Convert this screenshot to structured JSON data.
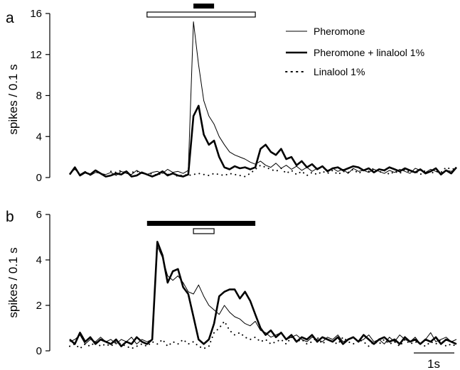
{
  "chart_data": [
    {
      "panel_label": "a",
      "type": "line",
      "ylabel": "spikes / 0.1 s",
      "ylim": [
        0,
        16
      ],
      "yticks": [
        0,
        4,
        8,
        12,
        16
      ],
      "xlim": [
        0,
        7.5
      ],
      "grid": false,
      "legend_position": "top-right",
      "stimulus_bars": [
        {
          "style": "open",
          "start": 1.5,
          "end": 3.6
        },
        {
          "style": "filled",
          "start": 2.4,
          "end": 2.8
        }
      ],
      "series": [
        {
          "name": "Pheromone",
          "style": "thin",
          "x": [
            0.0,
            0.1,
            0.2,
            0.3,
            0.4,
            0.5,
            0.6,
            0.7,
            0.8,
            0.9,
            1.0,
            1.1,
            1.2,
            1.3,
            1.4,
            1.5,
            1.6,
            1.7,
            1.8,
            1.9,
            2.0,
            2.1,
            2.2,
            2.3,
            2.4,
            2.5,
            2.6,
            2.7,
            2.8,
            2.9,
            3.0,
            3.1,
            3.2,
            3.3,
            3.4,
            3.5,
            3.6,
            3.7,
            3.8,
            3.9,
            4.0,
            4.1,
            4.2,
            4.3,
            4.4,
            4.5,
            4.6,
            4.7,
            4.8,
            4.9,
            5.0,
            5.1,
            5.2,
            5.3,
            5.4,
            5.5,
            5.6,
            5.7,
            5.8,
            5.9,
            6.0,
            6.1,
            6.2,
            6.3,
            6.4,
            6.5,
            6.6,
            6.7,
            6.8,
            6.9,
            7.0,
            7.1,
            7.2,
            7.3,
            7.4,
            7.5
          ],
          "y": [
            0.4,
            0.8,
            0.3,
            0.6,
            0.2,
            0.5,
            0.4,
            0.3,
            0.5,
            0.2,
            0.6,
            0.4,
            0.3,
            0.7,
            0.4,
            0.3,
            0.5,
            0.6,
            0.4,
            0.8,
            0.5,
            0.6,
            0.4,
            0.7,
            15.2,
            11.0,
            7.5,
            6.0,
            5.2,
            4.0,
            3.2,
            2.5,
            2.2,
            2.0,
            1.8,
            1.5,
            1.3,
            1.6,
            1.2,
            1.0,
            1.4,
            0.9,
            1.2,
            0.8,
            1.1,
            0.7,
            1.0,
            0.6,
            0.9,
            1.1,
            0.7,
            0.9,
            0.6,
            0.8,
            0.4,
            0.9,
            0.6,
            0.7,
            0.5,
            0.8,
            0.6,
            0.4,
            0.7,
            0.5,
            0.8,
            0.6,
            0.4,
            0.9,
            0.7,
            0.5,
            0.8,
            0.6,
            0.4,
            0.7,
            0.6,
            0.9
          ]
        },
        {
          "name": "Pheromone + linalool 1%",
          "style": "thick",
          "x": [
            0.0,
            0.1,
            0.2,
            0.3,
            0.4,
            0.5,
            0.6,
            0.7,
            0.8,
            0.9,
            1.0,
            1.1,
            1.2,
            1.3,
            1.4,
            1.5,
            1.6,
            1.7,
            1.8,
            1.9,
            2.0,
            2.1,
            2.2,
            2.3,
            2.4,
            2.5,
            2.6,
            2.7,
            2.8,
            2.9,
            3.0,
            3.1,
            3.2,
            3.3,
            3.4,
            3.5,
            3.6,
            3.7,
            3.8,
            3.9,
            4.0,
            4.1,
            4.2,
            4.3,
            4.4,
            4.5,
            4.6,
            4.7,
            4.8,
            4.9,
            5.0,
            5.1,
            5.2,
            5.3,
            5.4,
            5.5,
            5.6,
            5.7,
            5.8,
            5.9,
            6.0,
            6.1,
            6.2,
            6.3,
            6.4,
            6.5,
            6.6,
            6.7,
            6.8,
            6.9,
            7.0,
            7.1,
            7.2,
            7.3,
            7.4,
            7.5
          ],
          "y": [
            0.3,
            1.0,
            0.2,
            0.5,
            0.3,
            0.7,
            0.4,
            0.1,
            0.2,
            0.4,
            0.3,
            0.6,
            0.1,
            0.2,
            0.5,
            0.3,
            0.1,
            0.3,
            0.6,
            0.2,
            0.4,
            0.2,
            0.1,
            0.3,
            6.0,
            7.0,
            4.2,
            3.2,
            3.6,
            2.0,
            1.0,
            0.8,
            1.1,
            0.9,
            1.0,
            0.8,
            1.0,
            2.8,
            3.2,
            2.5,
            2.2,
            2.8,
            1.8,
            2.0,
            1.2,
            1.6,
            1.0,
            1.3,
            0.8,
            1.1,
            0.6,
            0.9,
            1.0,
            0.7,
            0.9,
            1.1,
            1.0,
            0.7,
            0.9,
            0.5,
            0.8,
            0.7,
            1.0,
            0.8,
            0.6,
            0.9,
            0.7,
            0.5,
            0.8,
            0.4,
            0.6,
            0.9,
            0.3,
            0.7,
            0.4,
            1.0
          ]
        },
        {
          "name": "Linalool 1%",
          "style": "dotted",
          "x": [
            0.8,
            0.9,
            1.0,
            1.1,
            1.2,
            1.3,
            1.4,
            1.5,
            1.6,
            1.7,
            1.8,
            1.9,
            2.0,
            2.1,
            2.2,
            2.3,
            2.4,
            2.5,
            2.6,
            2.7,
            2.8,
            2.9,
            3.0,
            3.1,
            3.2,
            3.3,
            3.4,
            3.5,
            3.6,
            3.7,
            3.8,
            3.9,
            4.0,
            4.1,
            4.2,
            4.3,
            4.4,
            4.5,
            4.6,
            4.7,
            4.8,
            4.9,
            5.0,
            5.1,
            5.2,
            5.3,
            5.4,
            5.5,
            5.6,
            5.7,
            5.8,
            5.9,
            6.0,
            6.1,
            6.2,
            6.3,
            6.4,
            6.5,
            6.6,
            6.7,
            6.8,
            6.9,
            7.0,
            7.1,
            7.2,
            7.3,
            7.4,
            7.5
          ],
          "y": [
            0.6,
            0.5,
            0.7,
            0.4,
            0.5,
            0.6,
            0.5,
            0.3,
            0.4,
            0.2,
            0.5,
            0.3,
            0.4,
            0.1,
            0.3,
            0.2,
            0.3,
            0.4,
            0.3,
            0.2,
            0.4,
            0.3,
            0.2,
            0.4,
            0.3,
            0.2,
            0.1,
            0.4,
            0.8,
            1.2,
            1.0,
            0.8,
            0.6,
            0.9,
            0.4,
            0.7,
            0.3,
            0.6,
            0.2,
            0.5,
            0.3,
            0.6,
            0.4,
            0.7,
            0.3,
            0.6,
            0.5,
            0.8,
            0.4,
            0.7,
            0.6,
            0.9,
            0.5,
            0.7,
            0.3,
            0.6,
            0.4,
            0.8,
            0.5,
            0.6,
            0.3,
            0.7,
            0.4,
            0.6,
            0.5,
            1.0,
            0.8,
            0.9
          ]
        }
      ]
    },
    {
      "panel_label": "b",
      "type": "line",
      "ylabel": "spikes / 0.1 s",
      "ylim": [
        0,
        6
      ],
      "yticks": [
        0,
        2,
        4,
        6
      ],
      "xlim": [
        0,
        7.5
      ],
      "grid": false,
      "scale_bar": {
        "length_s": 1,
        "label": "1s"
      },
      "stimulus_bars": [
        {
          "style": "filled",
          "start": 1.5,
          "end": 3.6
        },
        {
          "style": "open",
          "start": 2.4,
          "end": 2.8
        }
      ],
      "series": [
        {
          "name": "Pheromone",
          "style": "thin",
          "x": [
            0.0,
            0.1,
            0.2,
            0.3,
            0.4,
            0.5,
            0.6,
            0.7,
            0.8,
            0.9,
            1.0,
            1.1,
            1.2,
            1.3,
            1.4,
            1.5,
            1.6,
            1.7,
            1.8,
            1.9,
            2.0,
            2.1,
            2.2,
            2.3,
            2.4,
            2.5,
            2.6,
            2.7,
            2.8,
            2.9,
            3.0,
            3.1,
            3.2,
            3.3,
            3.4,
            3.5,
            3.6,
            3.7,
            3.8,
            3.9,
            4.0,
            4.1,
            4.2,
            4.3,
            4.4,
            4.5,
            4.6,
            4.7,
            4.8,
            4.9,
            5.0,
            5.1,
            5.2,
            5.3,
            5.4,
            5.5,
            5.6,
            5.7,
            5.8,
            5.9,
            6.0,
            6.1,
            6.2,
            6.3,
            6.4,
            6.5,
            6.6,
            6.7,
            6.8,
            6.9,
            7.0,
            7.1,
            7.2,
            7.3,
            7.4,
            7.5
          ],
          "y": [
            0.4,
            0.5,
            0.7,
            0.3,
            0.5,
            0.4,
            0.6,
            0.4,
            0.5,
            0.3,
            0.5,
            0.4,
            0.6,
            0.3,
            0.5,
            0.4,
            0.5,
            4.6,
            4.1,
            3.3,
            3.1,
            3.3,
            3.0,
            2.6,
            2.5,
            2.9,
            2.4,
            2.0,
            1.8,
            1.6,
            2.0,
            1.7,
            1.5,
            1.4,
            1.2,
            1.1,
            1.3,
            0.9,
            0.8,
            0.6,
            0.7,
            0.8,
            0.5,
            0.6,
            0.7,
            0.5,
            0.4,
            0.6,
            0.5,
            0.4,
            0.6,
            0.5,
            0.7,
            0.4,
            0.5,
            0.6,
            0.4,
            0.5,
            0.7,
            0.4,
            0.5,
            0.3,
            0.6,
            0.4,
            0.7,
            0.5,
            0.4,
            0.6,
            0.3,
            0.5,
            0.8,
            0.4,
            0.5,
            0.6,
            0.4,
            0.5
          ]
        },
        {
          "name": "Pheromone + linalool 1%",
          "style": "thick",
          "x": [
            0.0,
            0.1,
            0.2,
            0.3,
            0.4,
            0.5,
            0.6,
            0.7,
            0.8,
            0.9,
            1.0,
            1.1,
            1.2,
            1.3,
            1.4,
            1.5,
            1.6,
            1.7,
            1.8,
            1.9,
            2.0,
            2.1,
            2.2,
            2.3,
            2.4,
            2.5,
            2.6,
            2.7,
            2.8,
            2.9,
            3.0,
            3.1,
            3.2,
            3.3,
            3.4,
            3.5,
            3.6,
            3.7,
            3.8,
            3.9,
            4.0,
            4.1,
            4.2,
            4.3,
            4.4,
            4.5,
            4.6,
            4.7,
            4.8,
            4.9,
            5.0,
            5.1,
            5.2,
            5.3,
            5.4,
            5.5,
            5.6,
            5.7,
            5.8,
            5.9,
            6.0,
            6.1,
            6.2,
            6.3,
            6.4,
            6.5,
            6.6,
            6.7,
            6.8,
            6.9,
            7.0,
            7.1,
            7.2,
            7.3,
            7.4,
            7.5
          ],
          "y": [
            0.5,
            0.3,
            0.8,
            0.4,
            0.6,
            0.3,
            0.5,
            0.4,
            0.3,
            0.5,
            0.2,
            0.4,
            0.3,
            0.6,
            0.4,
            0.3,
            0.5,
            4.8,
            4.2,
            3.0,
            3.5,
            3.6,
            2.8,
            2.5,
            1.5,
            0.5,
            0.3,
            0.5,
            1.2,
            2.4,
            2.6,
            2.7,
            2.7,
            2.3,
            2.6,
            2.2,
            1.6,
            1.0,
            0.7,
            0.9,
            0.6,
            0.8,
            0.5,
            0.7,
            0.4,
            0.6,
            0.5,
            0.7,
            0.4,
            0.6,
            0.5,
            0.4,
            0.6,
            0.3,
            0.5,
            0.6,
            0.4,
            0.7,
            0.5,
            0.3,
            0.5,
            0.6,
            0.4,
            0.5,
            0.3,
            0.6,
            0.4,
            0.5,
            0.3,
            0.5,
            0.4,
            0.6,
            0.3,
            0.5,
            0.4,
            0.3
          ]
        },
        {
          "name": "Linalool 1%",
          "style": "dotted",
          "x": [
            0.0,
            0.1,
            0.2,
            0.3,
            0.4,
            0.5,
            0.6,
            0.7,
            0.8,
            0.9,
            1.0,
            1.1,
            1.2,
            1.3,
            1.4,
            1.5,
            1.6,
            1.7,
            1.8,
            1.9,
            2.0,
            2.1,
            2.2,
            2.3,
            2.4,
            2.5,
            2.6,
            2.7,
            2.8,
            2.9,
            3.0,
            3.1,
            3.2,
            3.3,
            3.4,
            3.5,
            3.6,
            3.7,
            3.8,
            3.9,
            4.0,
            4.1,
            4.2,
            4.3,
            4.4,
            4.5,
            4.6,
            4.7,
            4.8,
            4.9,
            5.0,
            5.1,
            5.2,
            5.3,
            5.4,
            5.5,
            5.6,
            5.7,
            5.8,
            5.9,
            6.0,
            6.1,
            6.2,
            6.3,
            6.4,
            6.5,
            6.6,
            6.7,
            6.8,
            6.9,
            7.0,
            7.1,
            7.2,
            7.3,
            7.4,
            7.5
          ],
          "y": [
            0.2,
            0.3,
            0.1,
            0.3,
            0.2,
            0.4,
            0.2,
            0.3,
            0.2,
            0.4,
            0.3,
            0.2,
            0.1,
            0.2,
            0.3,
            0.2,
            0.4,
            0.3,
            0.5,
            0.2,
            0.4,
            0.3,
            0.5,
            0.3,
            0.4,
            0.2,
            0.1,
            0.2,
            0.8,
            1.0,
            1.3,
            0.9,
            0.7,
            0.8,
            0.6,
            0.5,
            0.6,
            0.4,
            0.5,
            0.3,
            0.4,
            0.5,
            0.3,
            0.6,
            0.4,
            0.5,
            0.3,
            0.4,
            0.6,
            0.3,
            0.5,
            0.4,
            0.3,
            0.6,
            0.4,
            0.3,
            0.5,
            0.4,
            0.2,
            0.4,
            0.3,
            0.5,
            0.3,
            0.4,
            0.2,
            0.5,
            0.3,
            0.4,
            0.3,
            0.2,
            0.4,
            0.3,
            0.5,
            0.2,
            0.3,
            0.2
          ]
        }
      ]
    }
  ]
}
